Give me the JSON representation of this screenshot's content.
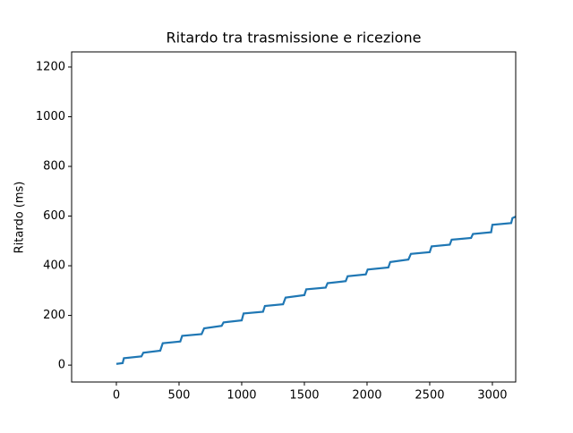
{
  "chart_data": {
    "type": "line",
    "title": "Ritardo tra trasmissione e ricezione",
    "ylabel": "Ritardo (ms)",
    "x": [
      0,
      50,
      60,
      200,
      215,
      350,
      370,
      510,
      525,
      680,
      700,
      840,
      855,
      1000,
      1015,
      1170,
      1185,
      1330,
      1350,
      1500,
      1515,
      1670,
      1685,
      1830,
      1845,
      1990,
      2005,
      2170,
      2185,
      2330,
      2350,
      2500,
      2515,
      2660,
      2675,
      2830,
      2845,
      2990,
      3000,
      3150,
      3160,
      3186
    ],
    "series": [
      {
        "color": "#1f77b4",
        "values": [
          5,
          8,
          28,
          35,
          50,
          58,
          88,
          95,
          118,
          125,
          148,
          158,
          172,
          180,
          208,
          215,
          238,
          245,
          272,
          282,
          305,
          312,
          330,
          338,
          358,
          365,
          385,
          393,
          415,
          425,
          448,
          455,
          478,
          485,
          505,
          512,
          528,
          535,
          565,
          572,
          592,
          598
        ]
      }
    ],
    "xlim": [
      -357,
      3186
    ],
    "ylim": [
      -68,
      1261
    ],
    "xticks": [
      0,
      500,
      1000,
      1500,
      2000,
      2500,
      3000
    ],
    "yticks": [
      0,
      200,
      400,
      600,
      800,
      1000,
      1200
    ]
  }
}
